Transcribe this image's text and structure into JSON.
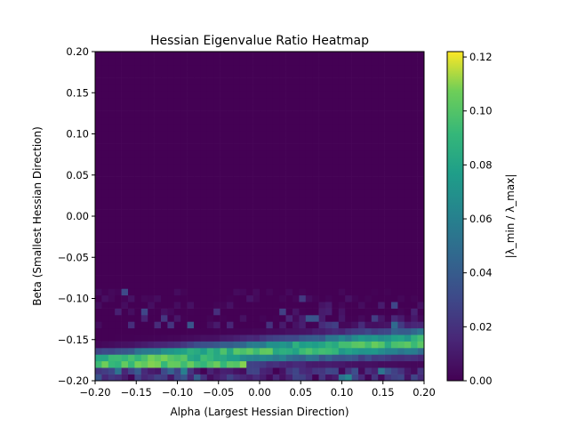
{
  "chart_data": {
    "type": "heatmap",
    "title": "Hessian Eigenvalue Ratio Heatmap",
    "xlabel": "Alpha (Largest Hessian Direction)",
    "ylabel": "Beta (Smallest Hessian Direction)",
    "xlim": [
      -0.2,
      0.2
    ],
    "ylim": [
      -0.2,
      0.2
    ],
    "xticks": [
      "−0.20",
      "−0.15",
      "−0.10",
      "−0.05",
      "0.00",
      "0.05",
      "0.10",
      "0.15",
      "0.20"
    ],
    "yticks": [
      "−0.20",
      "−0.15",
      "−0.10",
      "−0.05",
      "0.00",
      "0.05",
      "0.10",
      "0.15",
      "0.20"
    ],
    "grid_size": [
      50,
      50
    ],
    "colormap": "viridis",
    "colorbar": {
      "label": "|λ_min / λ_max|",
      "range": [
        0.0,
        0.122
      ],
      "ticks": [
        "0.00",
        "0.02",
        "0.04",
        "0.06",
        "0.08",
        "0.10",
        "0.12"
      ],
      "tick_values": [
        0.0,
        0.02,
        0.04,
        0.06,
        0.08,
        0.1,
        0.12
      ]
    },
    "description_values": {
      "beta_band_peak": [
        -0.18,
        -0.15
      ],
      "max_ratio": 0.12,
      "background_ratio": 0.0
    }
  }
}
